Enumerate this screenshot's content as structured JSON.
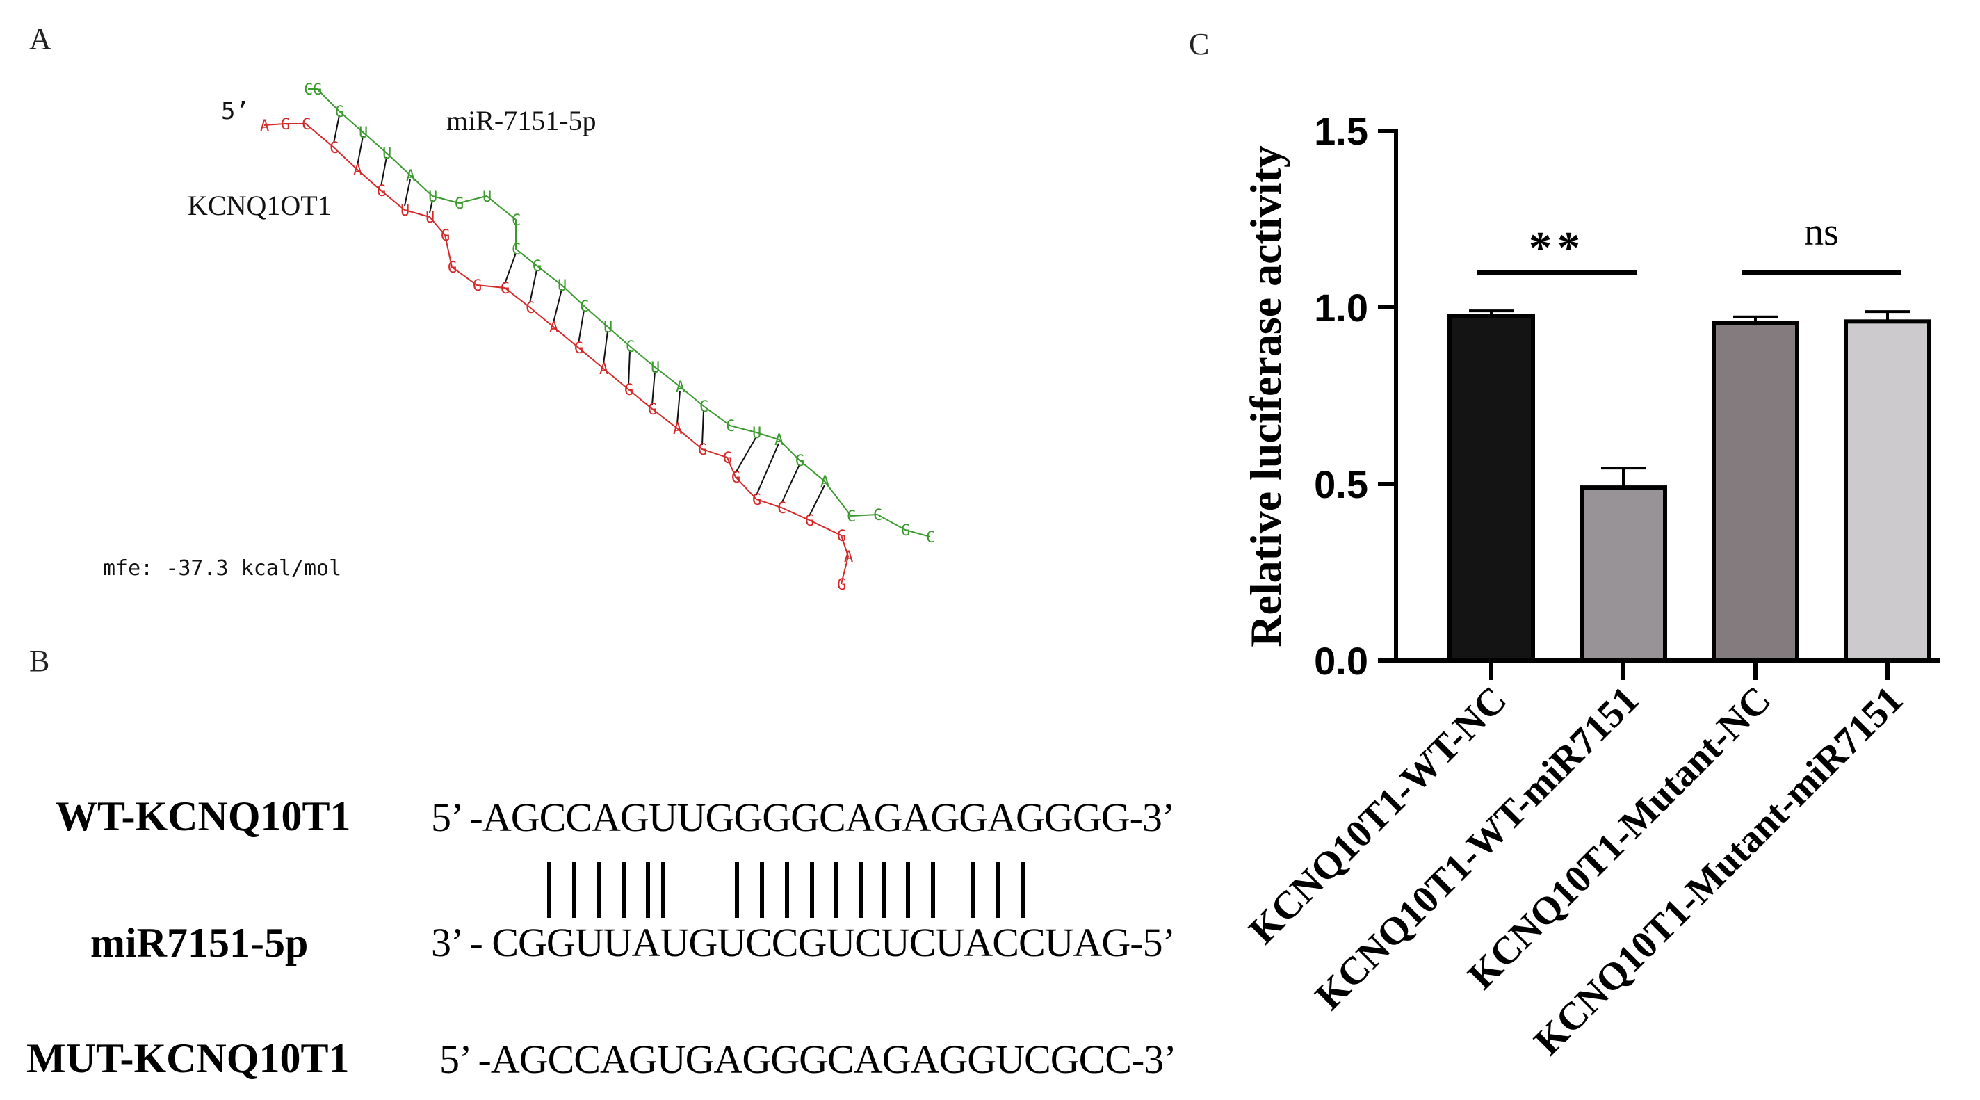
{
  "panels": {
    "a": "A",
    "b": "B",
    "c": "C"
  },
  "hairpin": {
    "five_prime": "5’",
    "mirna_label": "miR-7151-5p",
    "lncrna_label": "KCNQ1OT1",
    "mfe": "mfe: -37.3 kcal/mol",
    "colors": {
      "mirna": "#3a9a2e",
      "lncrna": "#d42a2a",
      "pair": "#111111"
    }
  },
  "alignment": {
    "wt_label": "WT-KCNQ10T1",
    "wt_seq": "5’ -AGCCAGUUGGGGCAGAGGAGGGG-3’",
    "mir_label": "miR7151-5p",
    "mir_seq": "3’ -  CGGUUAUGUCCGUCUCUACCUAG-5’",
    "mut_label": "MUT-KCNQ10T1",
    "mut_seq": "5’ -AGCCAGUGAGGGCAGAGGUCGCC-3’"
  },
  "chart_data": {
    "type": "bar",
    "title": "",
    "ylabel": "Relative luciferase activity",
    "xlabel": "",
    "ylim": [
      0,
      1.5
    ],
    "yticks": [
      "0.0",
      "0.5",
      "1.0",
      "1.5"
    ],
    "categories": [
      "KCNQ10T1-WT-NC",
      "KCNQ10T1-WT-miR7151",
      "KCNQ10T1-Mutant-NC",
      "KCNQ10T1-Mutant-miR7151"
    ],
    "values": [
      0.975,
      0.49,
      0.955,
      0.96
    ],
    "errors": [
      0.015,
      0.055,
      0.018,
      0.028
    ],
    "bar_colors": [
      "#141414",
      "#979397",
      "#837b7e",
      "#cccacc"
    ],
    "significance": [
      {
        "from": 0,
        "to": 1,
        "label": "**"
      },
      {
        "from": 2,
        "to": 3,
        "label": "ns"
      }
    ]
  }
}
